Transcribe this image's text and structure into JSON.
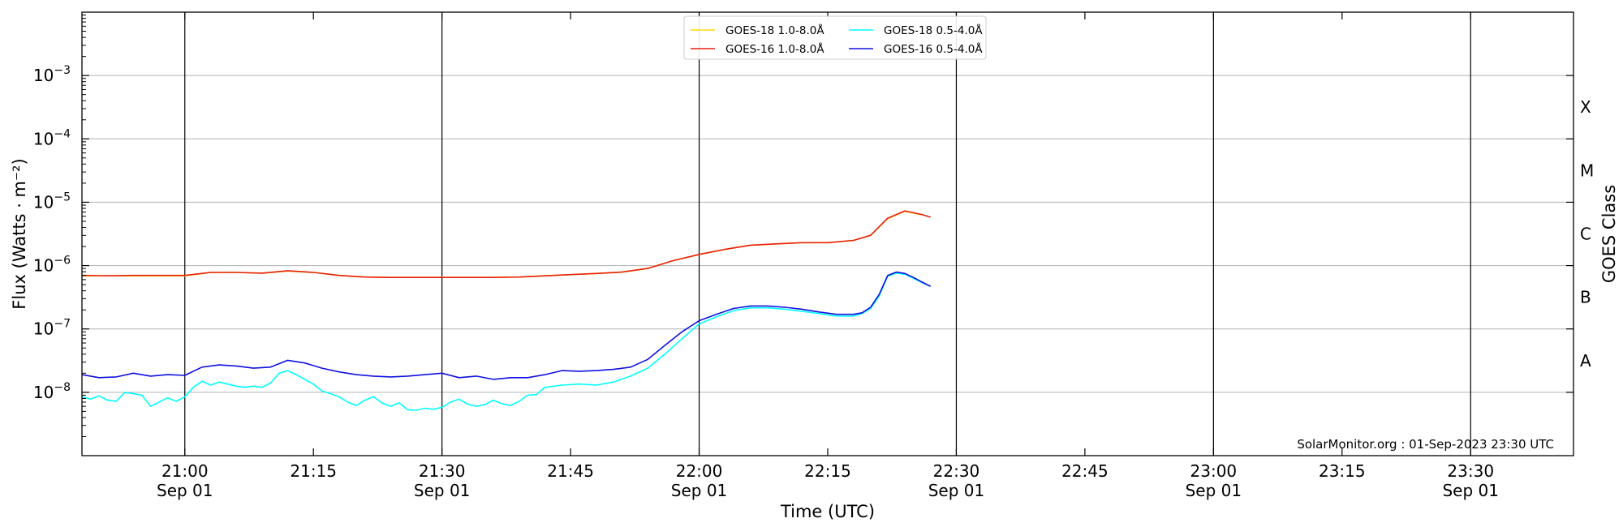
{
  "chart_data": {
    "type": "line",
    "title": "",
    "xlabel": "Time (UTC)",
    "ylabel": "Flux (Watts · m⁻²)",
    "right_label": "GOES Class",
    "credit": "SolarMonitor.org : 01-Sep-2023 23:30 UTC",
    "x_range": [
      "20:48",
      "23:42"
    ],
    "ylim": [
      1e-09,
      0.01
    ],
    "y_scale": "log",
    "y_ticks": [
      {
        "value": 1e-08,
        "base": "10",
        "exp": "−8"
      },
      {
        "value": 1e-07,
        "base": "10",
        "exp": "−7"
      },
      {
        "value": 1e-06,
        "base": "10",
        "exp": "−6"
      },
      {
        "value": 1e-05,
        "base": "10",
        "exp": "−5"
      },
      {
        "value": 0.0001,
        "base": "10",
        "exp": "−4"
      },
      {
        "value": 0.001,
        "base": "10",
        "exp": "−3"
      }
    ],
    "x_ticks": [
      {
        "time": "21:00",
        "date": "Sep 01",
        "major": true
      },
      {
        "time": "21:15",
        "date": "",
        "major": false
      },
      {
        "time": "21:30",
        "date": "Sep 01",
        "major": true
      },
      {
        "time": "21:45",
        "date": "",
        "major": false
      },
      {
        "time": "22:00",
        "date": "Sep 01",
        "major": true
      },
      {
        "time": "22:15",
        "date": "",
        "major": false
      },
      {
        "time": "22:30",
        "date": "Sep 01",
        "major": true
      },
      {
        "time": "22:45",
        "date": "",
        "major": false
      },
      {
        "time": "23:00",
        "date": "Sep 01",
        "major": true
      },
      {
        "time": "23:15",
        "date": "",
        "major": false
      },
      {
        "time": "23:30",
        "date": "Sep 01",
        "major": true
      }
    ],
    "goes_classes": [
      {
        "label": "A",
        "value": 3.16e-08
      },
      {
        "label": "B",
        "value": 3.16e-07
      },
      {
        "label": "C",
        "value": 3.16e-06
      },
      {
        "label": "M",
        "value": 3.16e-05
      },
      {
        "label": "X",
        "value": 0.000316
      }
    ],
    "grid": true,
    "legend_position": "top-center",
    "series": [
      {
        "name": "GOES-18 1.0-8.0Å",
        "color": "#ffd700",
        "x": [
          "20:48",
          "20:51",
          "20:54",
          "20:57",
          "21:00",
          "21:03",
          "21:06",
          "21:09",
          "21:12",
          "21:15",
          "21:18",
          "21:21",
          "21:24",
          "21:27",
          "21:30",
          "21:33",
          "21:36",
          "21:39",
          "21:42",
          "21:45",
          "21:48",
          "21:51",
          "21:54",
          "21:57",
          "22:00",
          "22:03",
          "22:06",
          "22:09",
          "22:12",
          "22:15",
          "22:18",
          "22:20",
          "22:22",
          "22:24",
          "22:26"
        ],
        "y": [
          6.9e-07,
          6.9e-07,
          6.9e-07,
          6.9e-07,
          6.9e-07,
          7.8e-07,
          7.8e-07,
          7.6e-07,
          8.2e-07,
          7.8e-07,
          7e-07,
          6.6e-07,
          6.5e-07,
          6.5e-07,
          6.5e-07,
          6.5e-07,
          6.5e-07,
          6.6e-07,
          6.9e-07,
          7.2e-07,
          7.5e-07,
          7.9e-07,
          9e-07,
          1.2e-06,
          1.5e-06,
          1.8e-06,
          2.1e-06,
          2.2e-06,
          2.3e-06,
          2.3e-06,
          2.5e-06,
          3e-06,
          5.5e-06,
          7.2e-06,
          6.3e-06
        ]
      },
      {
        "name": "GOES-16 1.0-8.0Å",
        "color": "#e8200e",
        "x": [
          "20:48",
          "20:51",
          "20:54",
          "20:57",
          "21:00",
          "21:03",
          "21:06",
          "21:09",
          "21:12",
          "21:15",
          "21:18",
          "21:21",
          "21:24",
          "21:27",
          "21:30",
          "21:33",
          "21:36",
          "21:39",
          "21:42",
          "21:45",
          "21:48",
          "21:51",
          "21:54",
          "21:57",
          "22:00",
          "22:03",
          "22:06",
          "22:09",
          "22:12",
          "22:15",
          "22:18",
          "22:20",
          "22:22",
          "22:24",
          "22:26",
          "22:27"
        ],
        "y": [
          7e-07,
          6.9e-07,
          7e-07,
          7e-07,
          7e-07,
          7.8e-07,
          7.8e-07,
          7.6e-07,
          8.3e-07,
          7.8e-07,
          7e-07,
          6.6e-07,
          6.5e-07,
          6.5e-07,
          6.5e-07,
          6.5e-07,
          6.5e-07,
          6.6e-07,
          6.9e-07,
          7.2e-07,
          7.5e-07,
          7.9e-07,
          9e-07,
          1.2e-06,
          1.5e-06,
          1.8e-06,
          2.1e-06,
          2.2e-06,
          2.3e-06,
          2.3e-06,
          2.5e-06,
          3e-06,
          5.6e-06,
          7.3e-06,
          6.4e-06,
          5.8e-06
        ]
      },
      {
        "name": "GOES-18 0.5-4.0Å",
        "color": "#00ffff",
        "x": [
          "20:48",
          "20:49",
          "20:50",
          "20:51",
          "20:52",
          "20:53",
          "20:54",
          "20:55",
          "20:56",
          "20:57",
          "20:58",
          "20:59",
          "21:00",
          "21:01",
          "21:02",
          "21:03",
          "21:04",
          "21:05",
          "21:06",
          "21:07",
          "21:08",
          "21:09",
          "21:10",
          "21:11",
          "21:12",
          "21:13",
          "21:14",
          "21:15",
          "21:16",
          "21:17",
          "21:18",
          "21:19",
          "21:20",
          "21:21",
          "21:22",
          "21:23",
          "21:24",
          "21:25",
          "21:26",
          "21:27",
          "21:28",
          "21:29",
          "21:30",
          "21:31",
          "21:32",
          "21:33",
          "21:34",
          "21:35",
          "21:36",
          "21:37",
          "21:38",
          "21:39",
          "21:40",
          "21:41",
          "21:42",
          "21:44",
          "21:46",
          "21:48",
          "21:50",
          "21:52",
          "21:54",
          "21:56",
          "21:58",
          "22:00",
          "22:02",
          "22:04",
          "22:06",
          "22:08",
          "22:10",
          "22:12",
          "22:14",
          "22:16",
          "22:18",
          "22:19",
          "22:20",
          "22:21",
          "22:22",
          "22:23",
          "22:24",
          "22:25",
          "22:26",
          "22:27"
        ],
        "y": [
          8.5e-09,
          7.8e-09,
          8.8e-09,
          7.5e-09,
          7.2e-09,
          1e-08,
          9.5e-09,
          9e-09,
          6e-09,
          7e-09,
          8.2e-09,
          7.2e-09,
          8.5e-09,
          1.2e-08,
          1.5e-08,
          1.3e-08,
          1.45e-08,
          1.35e-08,
          1.25e-08,
          1.2e-08,
          1.25e-08,
          1.2e-08,
          1.4e-08,
          2e-08,
          2.2e-08,
          1.9e-08,
          1.6e-08,
          1.35e-08,
          1.05e-08,
          9.5e-09,
          8.5e-09,
          7e-09,
          6.2e-09,
          7.5e-09,
          8.5e-09,
          6.8e-09,
          6e-09,
          6.8e-09,
          5.3e-09,
          5.2e-09,
          5.6e-09,
          5.4e-09,
          5.8e-09,
          7e-09,
          7.8e-09,
          6.5e-09,
          6e-09,
          6.4e-09,
          7.5e-09,
          6.6e-09,
          6.2e-09,
          7.2e-09,
          9e-09,
          9.2e-09,
          1.2e-08,
          1.3e-08,
          1.35e-08,
          1.3e-08,
          1.45e-08,
          1.8e-08,
          2.4e-08,
          4e-08,
          7e-08,
          1.2e-07,
          1.55e-07,
          1.95e-07,
          2.15e-07,
          2.15e-07,
          2.05e-07,
          1.9e-07,
          1.75e-07,
          1.6e-07,
          1.6e-07,
          1.75e-07,
          2.1e-07,
          3.3e-07,
          6.8e-07,
          7.6e-07,
          7.3e-07,
          6.3e-07,
          5.4e-07,
          4.7e-07
        ]
      },
      {
        "name": "GOES-16 0.5-4.0Å",
        "color": "#1010e0",
        "x": [
          "20:48",
          "20:50",
          "20:52",
          "20:54",
          "20:56",
          "20:58",
          "21:00",
          "21:02",
          "21:04",
          "21:06",
          "21:08",
          "21:10",
          "21:12",
          "21:14",
          "21:16",
          "21:18",
          "21:20",
          "21:22",
          "21:24",
          "21:26",
          "21:28",
          "21:30",
          "21:32",
          "21:34",
          "21:36",
          "21:38",
          "21:40",
          "21:42",
          "21:44",
          "21:46",
          "21:48",
          "21:50",
          "21:52",
          "21:54",
          "21:56",
          "21:58",
          "22:00",
          "22:02",
          "22:04",
          "22:06",
          "22:08",
          "22:10",
          "22:12",
          "22:14",
          "22:16",
          "22:18",
          "22:19",
          "22:20",
          "22:21",
          "22:22",
          "22:23",
          "22:24",
          "22:25",
          "22:26",
          "22:27"
        ],
        "y": [
          1.9e-08,
          1.7e-08,
          1.75e-08,
          2e-08,
          1.8e-08,
          1.9e-08,
          1.85e-08,
          2.5e-08,
          2.7e-08,
          2.6e-08,
          2.4e-08,
          2.5e-08,
          3.2e-08,
          2.9e-08,
          2.4e-08,
          2.1e-08,
          1.9e-08,
          1.8e-08,
          1.75e-08,
          1.8e-08,
          1.9e-08,
          2e-08,
          1.7e-08,
          1.8e-08,
          1.6e-08,
          1.7e-08,
          1.7e-08,
          1.9e-08,
          2.2e-08,
          2.15e-08,
          2.2e-08,
          2.3e-08,
          2.5e-08,
          3.3e-08,
          5.5e-08,
          9e-08,
          1.35e-07,
          1.7e-07,
          2.1e-07,
          2.3e-07,
          2.3e-07,
          2.2e-07,
          2.05e-07,
          1.85e-07,
          1.7e-07,
          1.7e-07,
          1.8e-07,
          2.2e-07,
          3.5e-07,
          7e-07,
          7.9e-07,
          7.5e-07,
          6.5e-07,
          5.5e-07,
          4.7e-07
        ]
      }
    ]
  }
}
